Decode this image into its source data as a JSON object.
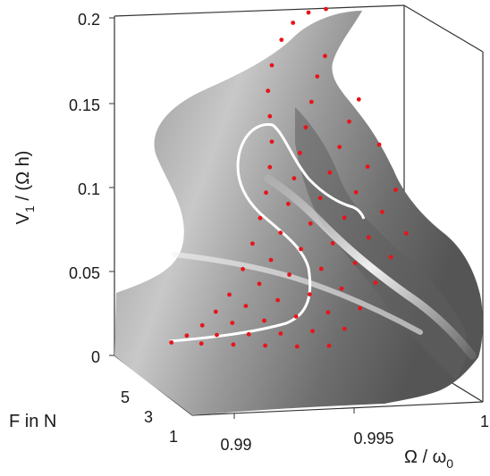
{
  "chart_data": {
    "type": "surface",
    "xlabel": "Ω / ω",
    "xlabel_subscript": "0",
    "ylabel": "F in N",
    "zlabel_main": "V",
    "zlabel_subscript": "1",
    "zlabel_suffix": " / (Ω h)",
    "x_ticks": [
      {
        "value": 0.99,
        "label": "0.99"
      },
      {
        "value": 0.995,
        "label": "0.995"
      },
      {
        "value": 1.0,
        "label": "1"
      }
    ],
    "y_ticks": [
      {
        "value": 1,
        "label": "1"
      },
      {
        "value": 3,
        "label": "3"
      },
      {
        "value": 5,
        "label": "5"
      }
    ],
    "z_ticks": [
      {
        "value": 0,
        "label": "0"
      },
      {
        "value": 0.05,
        "label": "0.05"
      },
      {
        "value": 0.1,
        "label": "0.1"
      },
      {
        "value": 0.15,
        "label": "0.15"
      },
      {
        "value": 0.2,
        "label": "0.2"
      }
    ],
    "xlim": [
      0.985,
      1.0
    ],
    "ylim": [
      1,
      6
    ],
    "zlim": [
      0,
      0.2
    ],
    "grid": false,
    "colors": {
      "surface": "#9a9a9a",
      "surface_highlight": "#f0f0f0",
      "markers": "#e8141a",
      "curve": "#ffffff",
      "axes": "#333333"
    },
    "series": [
      {
        "values_F": 1,
        "points": [
          [
            0.9875,
            0.002
          ],
          [
            0.9883,
            0.006
          ],
          [
            0.9891,
            0.012
          ],
          [
            0.9898,
            0.02
          ],
          [
            0.9905,
            0.03
          ],
          [
            0.9912,
            0.045
          ],
          [
            0.9917,
            0.06
          ],
          [
            0.9921,
            0.075
          ],
          [
            0.9924,
            0.09
          ],
          [
            0.9926,
            0.105
          ],
          [
            0.9927,
            0.12
          ],
          [
            0.9926,
            0.135
          ],
          [
            0.9925,
            0.15
          ],
          [
            0.9927,
            0.165
          ],
          [
            0.9932,
            0.18
          ],
          [
            0.9938,
            0.19
          ],
          [
            0.9946,
            0.196
          ],
          [
            0.9955,
            0.198
          ]
        ]
      },
      {
        "values_F": 2,
        "points": [
          [
            0.9878,
            0.003
          ],
          [
            0.9886,
            0.008
          ],
          [
            0.9894,
            0.015
          ],
          [
            0.9901,
            0.025
          ],
          [
            0.9908,
            0.038
          ],
          [
            0.9914,
            0.052
          ],
          [
            0.9919,
            0.068
          ],
          [
            0.9923,
            0.085
          ],
          [
            0.9926,
            0.1
          ],
          [
            0.9929,
            0.115
          ],
          [
            0.9932,
            0.13
          ],
          [
            0.9935,
            0.145
          ],
          [
            0.9938,
            0.16
          ],
          [
            0.9942,
            0.172
          ]
        ]
      },
      {
        "values_F": 3,
        "points": [
          [
            0.9882,
            0.004
          ],
          [
            0.989,
            0.01
          ],
          [
            0.9898,
            0.018
          ],
          [
            0.9905,
            0.03
          ],
          [
            0.9911,
            0.045
          ],
          [
            0.9917,
            0.06
          ],
          [
            0.9922,
            0.075
          ],
          [
            0.9927,
            0.09
          ],
          [
            0.9932,
            0.105
          ],
          [
            0.9937,
            0.12
          ],
          [
            0.9942,
            0.135
          ],
          [
            0.9947,
            0.148
          ]
        ]
      },
      {
        "values_F": 4,
        "points": [
          [
            0.9886,
            0.005
          ],
          [
            0.9894,
            0.012
          ],
          [
            0.9902,
            0.022
          ],
          [
            0.9909,
            0.035
          ],
          [
            0.9915,
            0.05
          ],
          [
            0.9921,
            0.065
          ],
          [
            0.9927,
            0.08
          ],
          [
            0.9933,
            0.095
          ],
          [
            0.9939,
            0.11
          ],
          [
            0.9945,
            0.123
          ]
        ]
      },
      {
        "values_F": 5,
        "points": [
          [
            0.989,
            0.006
          ],
          [
            0.9898,
            0.015
          ],
          [
            0.9906,
            0.026
          ],
          [
            0.9913,
            0.04
          ],
          [
            0.992,
            0.055
          ],
          [
            0.9927,
            0.07
          ],
          [
            0.9934,
            0.085
          ],
          [
            0.9941,
            0.098
          ]
        ]
      },
      {
        "values_F": 6,
        "points": [
          [
            0.9894,
            0.008
          ],
          [
            0.9902,
            0.018
          ],
          [
            0.991,
            0.03
          ],
          [
            0.9918,
            0.045
          ],
          [
            0.9926,
            0.06
          ],
          [
            0.9934,
            0.074
          ]
        ]
      }
    ]
  }
}
